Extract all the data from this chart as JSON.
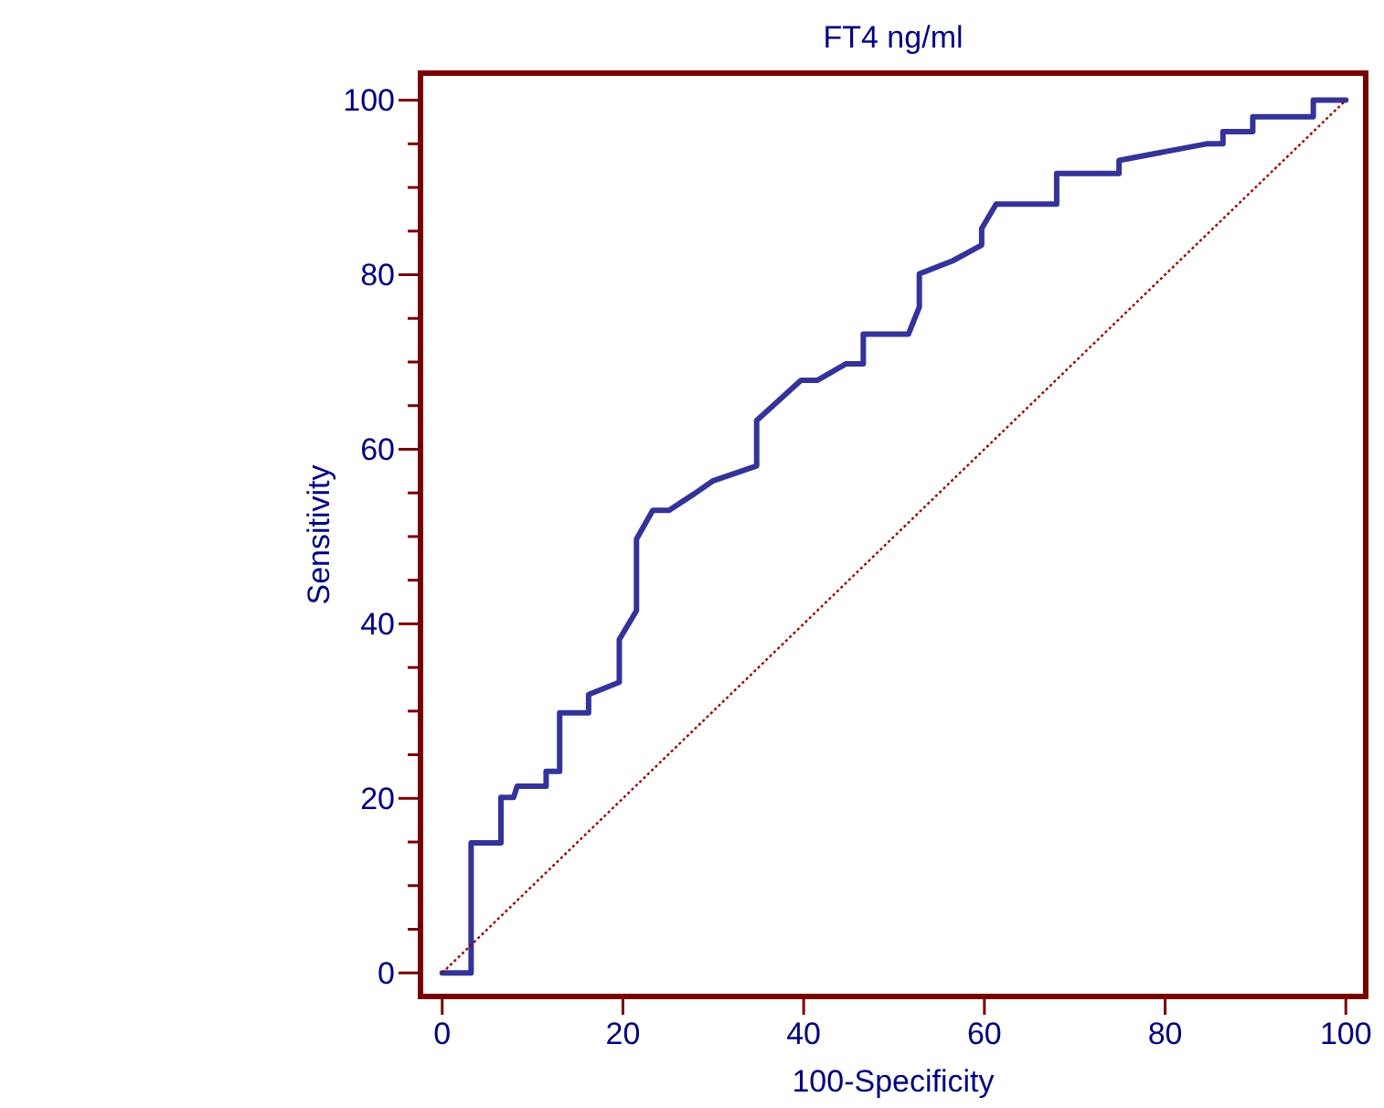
{
  "chart_data": {
    "type": "line",
    "title": "FT4 ng/ml",
    "xlabel": "100-Specificity",
    "ylabel": "Sensitivity",
    "xlim": [
      -2.4,
      102.2
    ],
    "ylim": [
      -2.7,
      103.1
    ],
    "xticks": [
      0,
      20,
      40,
      60,
      80,
      100
    ],
    "yticks": [
      0,
      {
        "value": 5,
        "label": null
      },
      {
        "value": 10,
        "label": null
      },
      {
        "value": 15,
        "label": null
      },
      20,
      {
        "value": 25,
        "label": null
      },
      {
        "value": 30,
        "label": null
      },
      {
        "value": 35,
        "label": null
      },
      40,
      {
        "value": 45,
        "label": null
      },
      {
        "value": 50,
        "label": null
      },
      {
        "value": 55,
        "label": null
      },
      60,
      {
        "value": 65,
        "label": null
      },
      {
        "value": 70,
        "label": null
      },
      {
        "value": 75,
        "label": null
      },
      80,
      {
        "value": 85,
        "label": null
      },
      {
        "value": 90,
        "label": null
      },
      {
        "value": 95,
        "label": null
      },
      100
    ],
    "grid": false,
    "marker": "none",
    "series": [
      {
        "color": "#333399",
        "line_style": "solid",
        "x": [
          0,
          3.2,
          3.2,
          6.5,
          6.5,
          7.9,
          8.3,
          11.5,
          11.5,
          13,
          13,
          16.2,
          16.2,
          19.6,
          19.6,
          21.5,
          21.5,
          23.3,
          25.1,
          27.9,
          30,
          34.8,
          34.8,
          39.7,
          41.5,
          44.7,
          46.6,
          46.6,
          51.6,
          52.8,
          52.8,
          56.5,
          59.7,
          59.7,
          61.3,
          68,
          68,
          74.9,
          74.9,
          84.6,
          86.4,
          86.4,
          89.7,
          89.7,
          96.4,
          96.4,
          100
        ],
        "values": [
          0,
          0,
          14.9,
          14.9,
          20.1,
          20.1,
          21.4,
          21.4,
          23.1,
          23.1,
          29.8,
          29.8,
          31.9,
          33.3,
          38.2,
          41.5,
          49.7,
          53,
          53,
          54.9,
          56.4,
          58.1,
          63.3,
          67.9,
          67.9,
          69.8,
          69.8,
          73.2,
          73.2,
          76.3,
          80.1,
          81.6,
          83.4,
          85.3,
          88.1,
          88.1,
          91.6,
          91.6,
          93.1,
          95,
          95,
          96.4,
          96.4,
          98.1,
          98.1,
          100,
          100
        ]
      },
      {
        "color": "#990000",
        "line_style": "dotted",
        "x": [
          0,
          100
        ],
        "values": [
          0,
          100
        ]
      }
    ]
  }
}
